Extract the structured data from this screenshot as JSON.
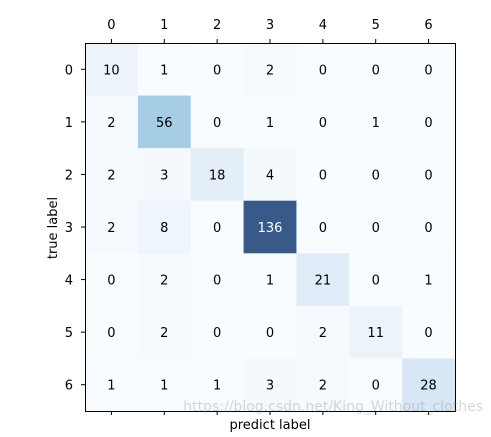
{
  "chart_data": {
    "type": "heatmap",
    "title": "",
    "xlabel": "predict label",
    "ylabel": "true label",
    "x_categories": [
      "0",
      "1",
      "2",
      "3",
      "4",
      "5",
      "6"
    ],
    "y_categories": [
      "0",
      "1",
      "2",
      "3",
      "4",
      "5",
      "6"
    ],
    "x_tick_position": "top",
    "colormap": "Blues",
    "color_low": "#f7fbff",
    "color_high": "#08306b",
    "values": [
      [
        10,
        1,
        0,
        2,
        0,
        0,
        0
      ],
      [
        2,
        56,
        0,
        1,
        0,
        1,
        0
      ],
      [
        2,
        3,
        18,
        4,
        0,
        0,
        0
      ],
      [
        2,
        8,
        0,
        136,
        0,
        0,
        0
      ],
      [
        0,
        2,
        0,
        1,
        21,
        0,
        1
      ],
      [
        0,
        2,
        0,
        0,
        2,
        11,
        0
      ],
      [
        1,
        1,
        1,
        3,
        2,
        0,
        28
      ]
    ],
    "vmin": 0,
    "vmax": 136,
    "colorbar": false,
    "grid": false
  },
  "watermark": "https://blog.csdn.net/King_Without_clothes"
}
